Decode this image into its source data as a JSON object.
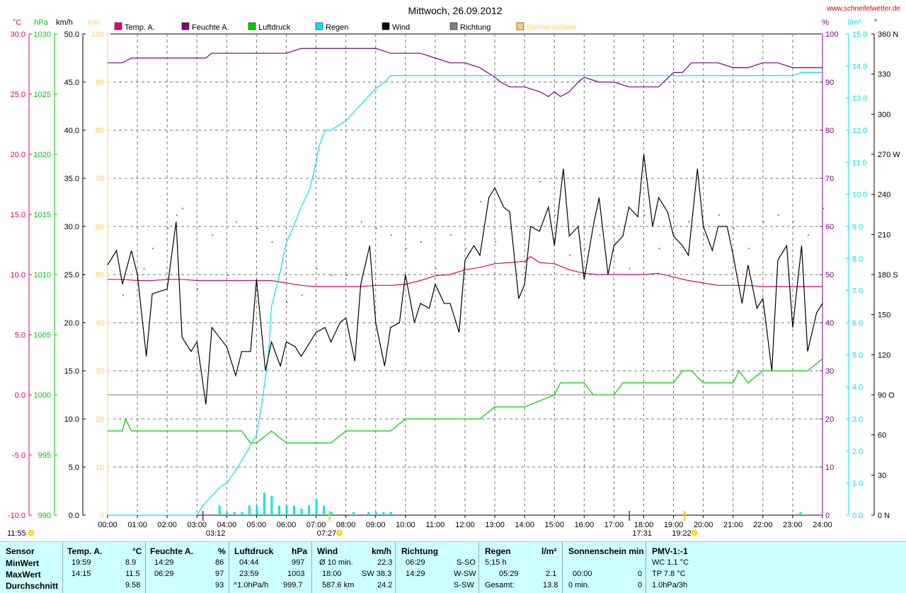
{
  "title": "Mittwoch, 26.09.2012",
  "website": "www.schneifelwetter.de",
  "colors": {
    "temp": "#e0006a",
    "humidity": "#800080",
    "pressure": "#00cc00",
    "rain": "#00e5ee",
    "wind": "#000000",
    "direction": "#808080",
    "sun": "#ffcc66"
  },
  "legend": [
    {
      "label": "Temp. A.",
      "color": "#e0006a"
    },
    {
      "label": "Feuchte A.",
      "color": "#800080"
    },
    {
      "label": "Luftdruck",
      "color": "#00cc00"
    },
    {
      "label": "Regen",
      "color": "#00e5ee"
    },
    {
      "label": "Wind",
      "color": "#000000"
    },
    {
      "label": "Richtung",
      "color": "#808080"
    },
    {
      "label": "Sonnenschein",
      "color": "#ffcc66"
    }
  ],
  "axis_units": {
    "temp": "°C",
    "pressure": "hPa",
    "wind": "km/h",
    "sun": "min",
    "humidity": "%",
    "rain": "l/m²",
    "direction": "°"
  },
  "chart_data": {
    "type": "line",
    "x_range": [
      0,
      24
    ],
    "x_ticks": [
      "00:00",
      "01:00",
      "02:00",
      "03:00",
      "04:00",
      "05:00",
      "06:00",
      "07:00",
      "08:00",
      "09:00",
      "10:00",
      "11:00",
      "12:00",
      "13:00",
      "14:00",
      "15:00",
      "16:00",
      "17:00",
      "18:00",
      "19:00",
      "20:00",
      "21:00",
      "22:00",
      "23:00",
      "24:00"
    ],
    "axes": {
      "temp": {
        "range": [
          -10,
          30
        ],
        "ticks": [
          "-10.0",
          "-5.0",
          "0.0",
          "5.0",
          "10.0",
          "15.0",
          "20.0",
          "25.0",
          "30.0"
        ]
      },
      "pressure": {
        "range": [
          990,
          1030
        ],
        "ticks": [
          "990",
          "995",
          "1000",
          "1005",
          "1010",
          "1015",
          "1020",
          "1025",
          "1030"
        ]
      },
      "wind": {
        "range": [
          0,
          50
        ],
        "ticks": [
          "0.0",
          "5.0",
          "10.0",
          "15.0",
          "20.0",
          "25.0",
          "30.0",
          "35.0",
          "40.0",
          "45.0",
          "50.0"
        ]
      },
      "sun": {
        "range": [
          0,
          100
        ],
        "ticks": [
          "0",
          "10",
          "20",
          "30",
          "40",
          "50",
          "60",
          "70",
          "80",
          "90",
          "100"
        ]
      },
      "humidity": {
        "range": [
          0,
          100
        ],
        "ticks": [
          "0",
          "10",
          "20",
          "30",
          "40",
          "50",
          "60",
          "70",
          "80",
          "90",
          "100"
        ]
      },
      "rain": {
        "range": [
          0,
          15
        ],
        "ticks": [
          "0.0",
          "1.0",
          "2.0",
          "3.0",
          "4.0",
          "5.0",
          "6.0",
          "7.0",
          "8.0",
          "9.0",
          "10.0",
          "11.0",
          "12.0",
          "13.0",
          "14.0",
          "15.0"
        ]
      },
      "direction": {
        "range": [
          0,
          360
        ],
        "ticks": [
          "0 N",
          "30",
          "60",
          "90 O",
          "120",
          "150",
          "180 S",
          "210",
          "240",
          "270 W",
          "300",
          "330",
          "360 N"
        ]
      }
    },
    "grid": true,
    "sunrise": "07:27",
    "sunset": "19:22",
    "day_length": "11:55",
    "moonrise": "17:31",
    "moonset": "03:12",
    "series": [
      {
        "key": "temp",
        "name": "Temp. A.",
        "axis": "temp",
        "x": [
          0,
          0.5,
          1,
          1.5,
          2,
          2.5,
          3,
          3.5,
          4,
          4.5,
          5,
          5.5,
          6,
          6.5,
          7,
          7.5,
          8,
          8.5,
          9,
          9.5,
          10,
          10.5,
          11,
          11.5,
          12,
          12.5,
          13,
          13.5,
          14,
          14.2,
          14.5,
          15,
          15.5,
          16,
          16.5,
          17,
          17.5,
          18,
          18.5,
          19,
          19.5,
          20,
          20.5,
          21,
          21.5,
          22,
          22.5,
          23,
          23.5,
          24
        ],
        "y": [
          9.6,
          9.6,
          9.5,
          9.5,
          9.6,
          9.6,
          9.5,
          9.5,
          9.5,
          9.5,
          9.5,
          9.5,
          9.3,
          9.1,
          9.0,
          9.0,
          9.0,
          9.0,
          9.1,
          9.1,
          9.2,
          9.5,
          9.9,
          10.0,
          10.4,
          10.6,
          10.9,
          11.0,
          11.1,
          11.5,
          11.0,
          10.9,
          10.4,
          10.1,
          10.0,
          10.0,
          10.0,
          10.0,
          10.1,
          9.8,
          9.5,
          9.3,
          9.1,
          9.1,
          9.1,
          9.0,
          9.0,
          9.0,
          9.0,
          9.0
        ]
      },
      {
        "key": "humidity",
        "name": "Feuchte A.",
        "axis": "humidity",
        "x": [
          0,
          0.5,
          0.8,
          1,
          2,
          3,
          3.3,
          3.5,
          4,
          5,
          6,
          6.5,
          7,
          8,
          9,
          9.5,
          10,
          10.5,
          11,
          11.5,
          12,
          12.5,
          13,
          13.2,
          13.5,
          14,
          14.5,
          14.8,
          15,
          15.2,
          15.5,
          15.8,
          16,
          16.5,
          17,
          17.5,
          18,
          18.5,
          19,
          19.3,
          19.6,
          20,
          20.5,
          21,
          21.5,
          22,
          22.5,
          23,
          23.5,
          24
        ],
        "y": [
          94,
          94,
          95,
          95,
          95,
          95,
          95,
          96,
          96,
          96,
          96,
          97,
          97,
          97,
          97,
          96,
          96,
          96,
          95,
          94,
          94,
          93,
          91,
          90,
          89,
          89,
          88,
          87,
          88,
          87,
          88,
          90,
          91,
          90,
          90,
          89,
          89,
          89,
          92,
          92,
          94,
          94,
          94,
          93,
          93,
          94,
          94,
          93,
          93,
          93
        ]
      },
      {
        "key": "pressure",
        "name": "Luftdruck",
        "axis": "pressure",
        "x": [
          0,
          0.5,
          0.6,
          0.8,
          1,
          2,
          3,
          4,
          4.5,
          4.8,
          5,
          5.5,
          6,
          7,
          7.5,
          8,
          9,
          9.5,
          10,
          10.5,
          11,
          12,
          12.5,
          13,
          14,
          15,
          15.2,
          15.5,
          16,
          16.3,
          16.5,
          17,
          17.3,
          17.5,
          18,
          18.5,
          19,
          19.3,
          19.6,
          20,
          20.5,
          21,
          21.2,
          21.5,
          22,
          22.5,
          23,
          23.5,
          24
        ],
        "y": [
          997,
          997,
          998,
          997,
          997,
          997,
          997,
          997,
          997,
          996,
          996,
          997,
          996,
          996,
          996,
          997,
          997,
          997,
          998,
          998,
          998,
          998,
          998,
          999,
          999,
          1000,
          1001,
          1001,
          1001,
          1000,
          1000,
          1000,
          1001,
          1001,
          1001,
          1001,
          1001,
          1002,
          1002,
          1001,
          1001,
          1001,
          1002,
          1001,
          1002,
          1002,
          1002,
          1002,
          1003
        ]
      },
      {
        "key": "rain",
        "name": "Regen",
        "axis": "rain",
        "x": [
          0,
          2,
          3,
          3.2,
          3.8,
          4,
          4.3,
          4.5,
          5,
          5.2,
          5.4,
          5.5,
          5.8,
          6,
          6.2,
          6.5,
          6.8,
          7,
          7.1,
          7.3,
          7.5,
          8,
          8.2,
          8.5,
          9,
          9.3,
          9.5,
          10,
          11,
          12,
          13,
          14,
          15,
          16,
          17,
          18,
          19,
          20,
          21,
          22,
          23,
          23.3,
          24
        ],
        "y": [
          0,
          0,
          0,
          0.3,
          0.9,
          1.0,
          1.4,
          1.7,
          2.5,
          3.6,
          5.0,
          6.5,
          7.6,
          8.5,
          8.9,
          9.6,
          10.2,
          11.0,
          11.5,
          12.0,
          12.0,
          12.3,
          12.5,
          12.8,
          13.3,
          13.5,
          13.7,
          13.7,
          13.7,
          13.7,
          13.7,
          13.7,
          13.7,
          13.7,
          13.7,
          13.7,
          13.7,
          13.7,
          13.7,
          13.7,
          13.7,
          13.8,
          13.8
        ]
      },
      {
        "key": "wind",
        "name": "Wind",
        "axis": "wind",
        "x": [
          0,
          0.3,
          0.5,
          0.8,
          1,
          1.3,
          1.5,
          2,
          2.3,
          2.5,
          2.8,
          3,
          3.3,
          3.5,
          4,
          4.3,
          4.5,
          4.8,
          5,
          5.3,
          5.5,
          5.8,
          6,
          6.3,
          6.5,
          6.8,
          7,
          7.3,
          7.5,
          7.8,
          8,
          8.3,
          8.5,
          8.8,
          9,
          9.3,
          9.5,
          9.8,
          10,
          10.3,
          10.5,
          10.8,
          11,
          11.3,
          11.5,
          11.8,
          12,
          12.3,
          12.5,
          12.8,
          13,
          13.3,
          13.5,
          13.8,
          14,
          14.2,
          14.5,
          14.8,
          15,
          15.3,
          15.5,
          15.8,
          16,
          16.3,
          16.5,
          16.8,
          17,
          17.3,
          17.5,
          17.8,
          18,
          18.3,
          18.5,
          18.8,
          19,
          19.3,
          19.5,
          19.8,
          20,
          20.3,
          20.5,
          20.8,
          21,
          21.3,
          21.5,
          21.8,
          22,
          22.3,
          22.5,
          22.8,
          23,
          23.3,
          23.5,
          23.8,
          24
        ],
        "y": [
          26,
          27.5,
          24,
          27.5,
          25,
          16.5,
          23,
          23.5,
          30.5,
          18.5,
          17,
          18,
          11.5,
          19.5,
          17.5,
          14.5,
          17,
          17,
          24.5,
          15,
          18,
          15.5,
          18,
          17.5,
          16.5,
          18,
          19,
          19.5,
          18,
          20,
          20.5,
          16,
          24,
          28,
          20,
          15.5,
          19.5,
          20,
          25,
          20,
          22,
          21.5,
          24,
          22,
          22,
          19,
          26.5,
          28,
          27,
          33,
          34,
          32,
          31.5,
          22.5,
          24,
          30,
          29.5,
          32,
          28,
          36,
          29,
          30,
          24.5,
          30,
          33,
          25,
          28,
          29,
          32,
          31,
          37.5,
          30,
          33,
          31.5,
          29,
          28,
          27,
          36,
          30,
          27.5,
          30,
          30,
          27,
          22,
          26,
          21.5,
          22.5,
          15,
          26.5,
          28,
          19.5,
          28,
          17,
          21,
          22
        ]
      }
    ],
    "rain_bars": {
      "x": [
        3.75,
        4.0,
        4.25,
        4.5,
        4.75,
        5.0,
        5.25,
        5.5,
        5.75,
        6.0,
        6.25,
        6.5,
        6.75,
        7.0,
        7.25,
        7.5,
        8.25,
        8.75,
        9.0,
        9.25,
        9.5,
        23.25
      ],
      "y": [
        0.3,
        0.1,
        0.1,
        0.1,
        0.3,
        0.3,
        0.7,
        0.6,
        0.3,
        0.3,
        0.3,
        0.2,
        0.3,
        0.5,
        0.3,
        0.1,
        0.1,
        0.1,
        0.1,
        0.1,
        0.1,
        0.1
      ]
    },
    "direction_points": {
      "x": [
        0.5,
        1,
        1.2,
        1.5,
        2,
        2.3,
        2.5,
        3,
        3.5,
        4,
        4.3,
        5,
        5.5,
        6,
        6.5,
        7,
        7.5,
        8,
        8.5,
        9,
        9.5,
        10,
        10.5,
        11,
        11.5,
        12,
        12.5,
        13,
        13.5,
        14,
        14.5,
        15,
        15.5,
        16,
        16.5,
        17,
        17.5,
        18,
        18.5,
        19,
        19.5,
        20,
        20.5,
        21,
        21.5,
        22,
        22.5,
        23,
        23.5,
        24
      ],
      "y": [
        165,
        180,
        185,
        200,
        215,
        225,
        230,
        170,
        210,
        180,
        220,
        215,
        205,
        160,
        165,
        185,
        180,
        180,
        220,
        215,
        210,
        200,
        205,
        185,
        210,
        200,
        235,
        205,
        215,
        190,
        250,
        225,
        195,
        200,
        210,
        205,
        185,
        225,
        200,
        210,
        220,
        210,
        225,
        215,
        200,
        220,
        225,
        220,
        210,
        230
      ]
    }
  },
  "stats": {
    "headers": {
      "sensor": "Sensor",
      "temp": "Temp. A.",
      "temp_unit": "°C",
      "hum": "Feuchte A.",
      "hum_unit": "%",
      "press": "Luftdruck",
      "press_unit": "hPa",
      "wind": "Wind",
      "wind_unit": "km/h",
      "dir": "Richtung",
      "rain": "Regen",
      "rain_unit": "l/m²",
      "sun": "Sonnenschein min",
      "pmv": "PMV-1:-1"
    },
    "rows": [
      {
        "label": "MinWert",
        "temp_t": "19:59",
        "temp_v": "8.9",
        "hum_t": "14:29",
        "hum_v": "86",
        "press_t": "04:44",
        "press_v": "997",
        "wind_t": "Ø 10 min.",
        "wind_v": "22.3",
        "dir_t": "06:29",
        "dir_v": "S-SO",
        "rain_t": "5:15 h",
        "rain_v": "",
        "sun_t": "",
        "sun_v": "",
        "pmv": "WC 1.1 °C"
      },
      {
        "label": "MaxWert",
        "temp_t": "14:15",
        "temp_v": "11.5",
        "hum_t": "06:29",
        "hum_v": "97",
        "press_t": "23:59",
        "press_v": "1003",
        "wind_t": "18:00",
        "wind_v": "SW 38.3",
        "dir_t": "14:29",
        "dir_v": "W-SW",
        "rain_t": "05:29",
        "rain_v": "2.1",
        "sun_t": "00:00",
        "sun_v": "0",
        "pmv": "TP 7.8 °C"
      },
      {
        "label": "Durchschnitt",
        "temp_t": "",
        "temp_v": "9.58",
        "hum_t": "",
        "hum_v": "93",
        "press_t": "^1.0hPa/h",
        "press_v": "999.7",
        "wind_t": "587.6 km",
        "wind_v": "24.2",
        "dir_t": "",
        "dir_v": "S-SW",
        "rain_t": "Gesamt:",
        "rain_v": "13.8",
        "sun_t": "0 min.",
        "sun_v": "0",
        "pmv": "1.0hPa/3h"
      }
    ]
  }
}
